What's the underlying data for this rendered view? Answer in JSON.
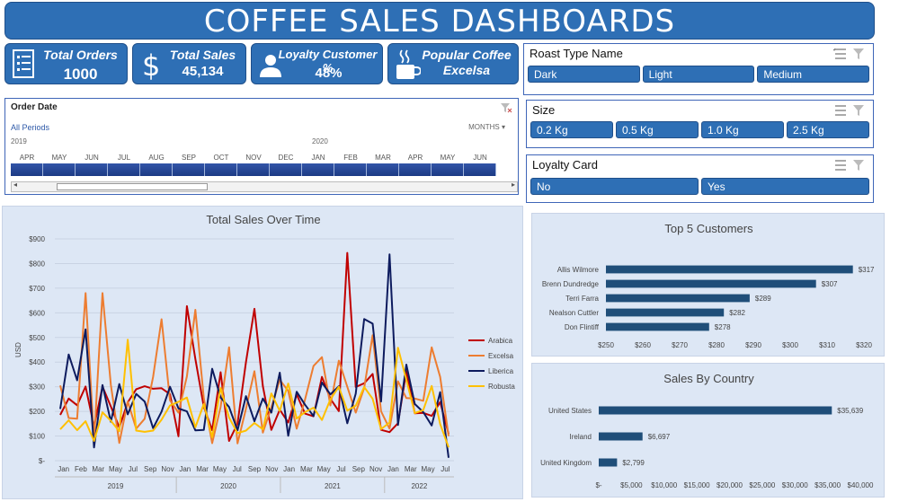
{
  "title": "COFFEE SALES DASHBOARDS",
  "kpis": {
    "total_orders": {
      "label": "Total Orders",
      "value": "1000"
    },
    "total_sales": {
      "label": "Total Sales",
      "value": "45,134"
    },
    "loyalty": {
      "label": "Loyalty Customer %",
      "value": "48%"
    },
    "popular": {
      "label": "Popular Coffee",
      "value": "Excelsa"
    }
  },
  "timeline": {
    "title": "Order Date",
    "all_periods": "All Periods",
    "months_label": "MONTHS",
    "years": [
      "2019",
      "2020"
    ],
    "months": [
      "APR",
      "MAY",
      "JUN",
      "JUL",
      "AUG",
      "SEP",
      "OCT",
      "NOV",
      "DEC",
      "JAN",
      "FEB",
      "MAR",
      "APR",
      "MAY",
      "JUN"
    ]
  },
  "slicers": {
    "roast": {
      "title": "Roast Type Name",
      "items": [
        "Dark",
        "Light",
        "Medium"
      ]
    },
    "size": {
      "title": "Size",
      "items": [
        "0.2 Kg",
        "0.5 Kg",
        "1.0 Kg",
        "2.5 Kg"
      ]
    },
    "loyalty": {
      "title": "Loyalty Card",
      "items": [
        "No",
        "Yes"
      ]
    }
  },
  "colors": {
    "accent": "#2e6fb5",
    "bar": "#1f4e79",
    "arabica": "#c00000",
    "excelsa": "#ed7d31",
    "liberica": "#0d1b5e",
    "robusta": "#ffc000"
  },
  "chart_data": [
    {
      "type": "line",
      "title": "Total Sales Over Time",
      "ylabel": "USD",
      "ylim": [
        0,
        900
      ],
      "yticks": [
        "$-",
        "$100",
        "$200",
        "$300",
        "$400",
        "$500",
        "$600",
        "$700",
        "$800",
        "$900"
      ],
      "x_labels": [
        "Jan",
        "Feb",
        "Mar",
        "May",
        "Jul",
        "Sep",
        "Nov",
        "Jan",
        "Mar",
        "May",
        "Jul",
        "Sep",
        "Nov",
        "Jan",
        "Mar",
        "May",
        "Jul",
        "Sep",
        "Nov",
        "Jan",
        "Mar",
        "May",
        "Jul"
      ],
      "year_labels": [
        "2019",
        "2020",
        "2021",
        "2022"
      ],
      "legend_position": "right",
      "series": [
        {
          "name": "Arabica",
          "values": [
            186,
            252,
            225,
            301,
            138,
            301,
            220,
            135,
            237,
            290,
            302,
            292,
            294,
            270,
            99,
            627,
            413,
            219,
            124,
            359,
            80,
            150,
            400,
            616,
            302,
            125,
            207,
            155,
            269,
            191,
            180,
            340,
            251,
            201,
            843,
            299,
            314,
            352,
            125,
            116,
            152,
            363,
            192,
            194,
            182,
            238,
            109
          ]
        },
        {
          "name": "Excelsa",
          "values": [
            305,
            173,
            170,
            680,
            79,
            680,
            308,
            72,
            240,
            130,
            170,
            340,
            574,
            245,
            195,
            342,
            612,
            254,
            71,
            218,
            460,
            70,
            211,
            363,
            114,
            216,
            328,
            283,
            130,
            248,
            384,
            420,
            224,
            406,
            300,
            195,
            295,
            509,
            200,
            130,
            322,
            254,
            252,
            243,
            460,
            340,
            100
          ]
        },
        {
          "name": "Liberica",
          "values": [
            210,
            431,
            326,
            533,
            54,
            307,
            158,
            311,
            188,
            271,
            240,
            132,
            199,
            300,
            212,
            200,
            123,
            125,
            373,
            256,
            218,
            123,
            262,
            160,
            252,
            195,
            357,
            101,
            280,
            227,
            181,
            317,
            269,
            302,
            152,
            272,
            575,
            556,
            240,
            837,
            145,
            390,
            230,
            197,
            143,
            278,
            12
          ]
        },
        {
          "name": "Robusta",
          "values": [
            127,
            164,
            124,
            160,
            80,
            196,
            162,
            119,
            491,
            122,
            117,
            122,
            166,
            224,
            239,
            256,
            135,
            230,
            95,
            295,
            175,
            112,
            122,
            153,
            127,
            273,
            202,
            313,
            171,
            197,
            215,
            165,
            249,
            300,
            203,
            223,
            299,
            251,
            128,
            155,
            458,
            328,
            193,
            205,
            303,
            149,
            54
          ]
        }
      ]
    },
    {
      "type": "bar",
      "title": "Top 5 Customers",
      "categories": [
        "Allis Wilmore",
        "Brenn Dundredge",
        "Terri Farra",
        "Nealson Cuttler",
        "Don Flintiff"
      ],
      "values": [
        317,
        307,
        289,
        282,
        278
      ],
      "value_labels": [
        "$317",
        "$307",
        "$289",
        "$282",
        "$278"
      ],
      "xlim": [
        250,
        320
      ],
      "xticks": [
        "$250",
        "$260",
        "$270",
        "$280",
        "$290",
        "$300",
        "$310",
        "$320"
      ]
    },
    {
      "type": "bar",
      "title": "Sales By Country",
      "categories": [
        "United States",
        "Ireland",
        "United Kingdom"
      ],
      "values": [
        35639,
        6697,
        2799
      ],
      "value_labels": [
        "$35,639",
        "$6,697",
        "$2,799"
      ],
      "xlim": [
        0,
        40000
      ],
      "xticks": [
        "$-",
        "$5,000",
        "$10,000",
        "$15,000",
        "$20,000",
        "$25,000",
        "$30,000",
        "$35,000",
        "$40,000"
      ]
    }
  ]
}
